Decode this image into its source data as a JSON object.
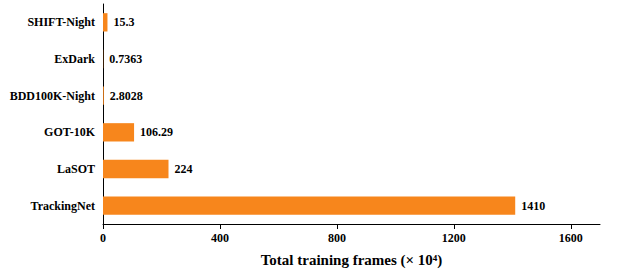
{
  "chart_data": {
    "type": "bar",
    "orientation": "horizontal",
    "x_label": "Total training frames (× 10⁴)",
    "categories": [
      "SHIFT-Night",
      "ExDark",
      "BDD100K-Night",
      "GOT-10K",
      "LaSOT",
      "TrackingNet"
    ],
    "values": [
      15.3,
      0.7363,
      2.8028,
      106.29,
      224,
      1410
    ],
    "color": "#f7861c",
    "xlim": [
      0,
      1700
    ],
    "xticks": [
      0,
      400,
      800,
      1200,
      1600
    ],
    "grid": false,
    "data_labels": true
  }
}
